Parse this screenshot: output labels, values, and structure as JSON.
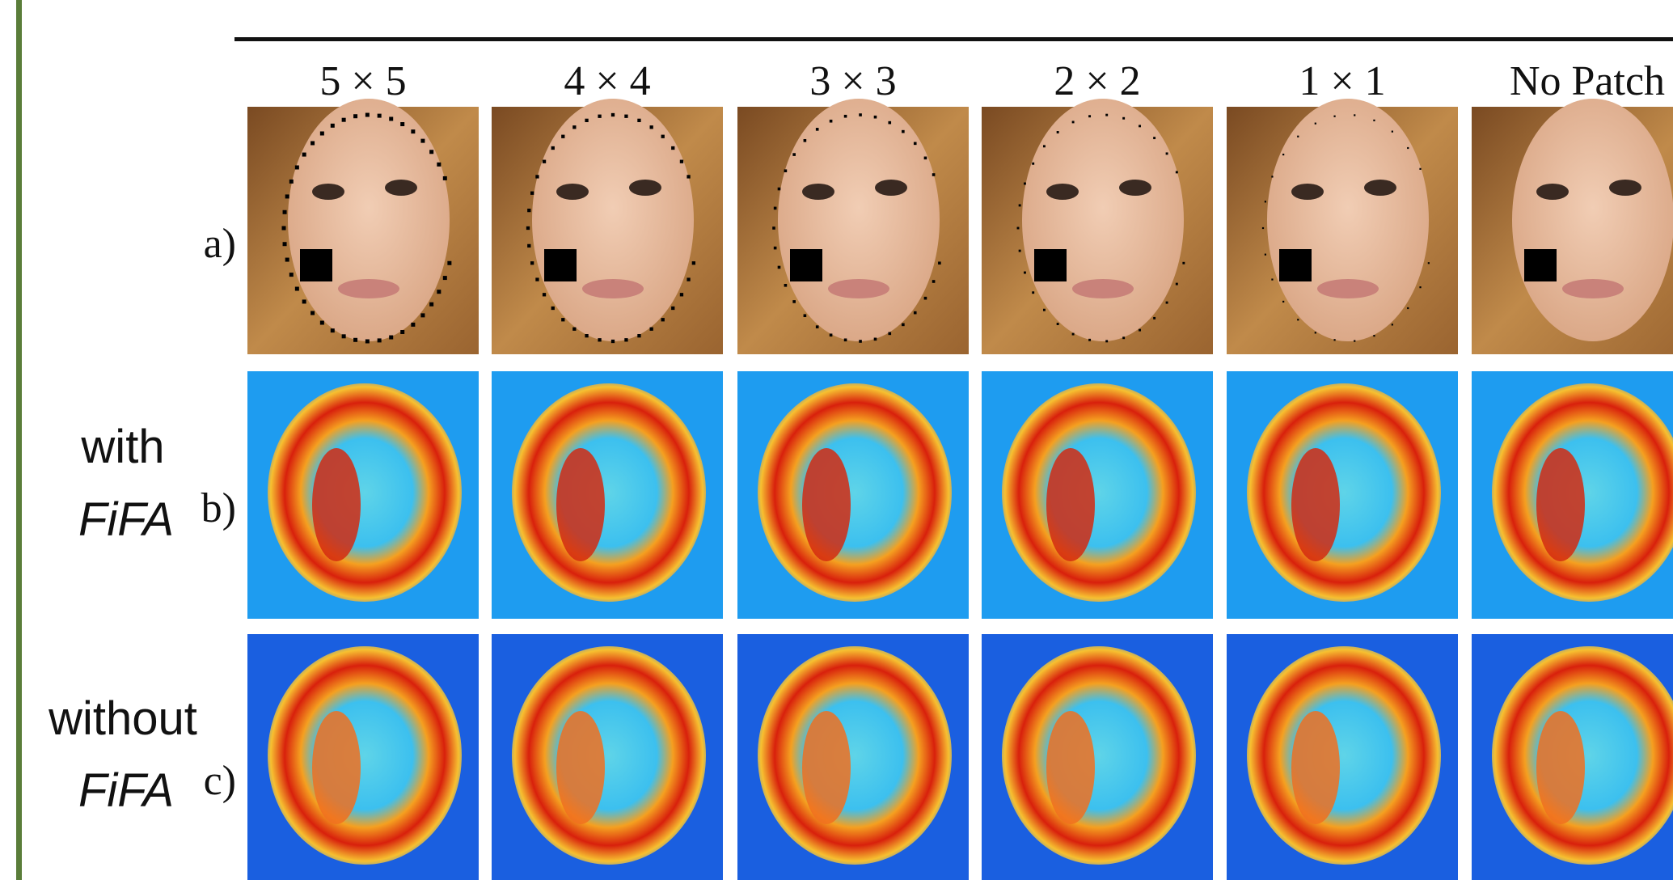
{
  "column_labels": [
    "5 × 5",
    "4 × 4",
    "3 × 3",
    "2 × 2",
    "1 × 1",
    "No Patch"
  ],
  "row_labels": [
    "a)",
    "b)",
    "c)"
  ],
  "side_labels": [
    {
      "line1": "with",
      "line2": "FiFA"
    },
    {
      "line1": "without",
      "line2": "FiFA"
    }
  ]
}
